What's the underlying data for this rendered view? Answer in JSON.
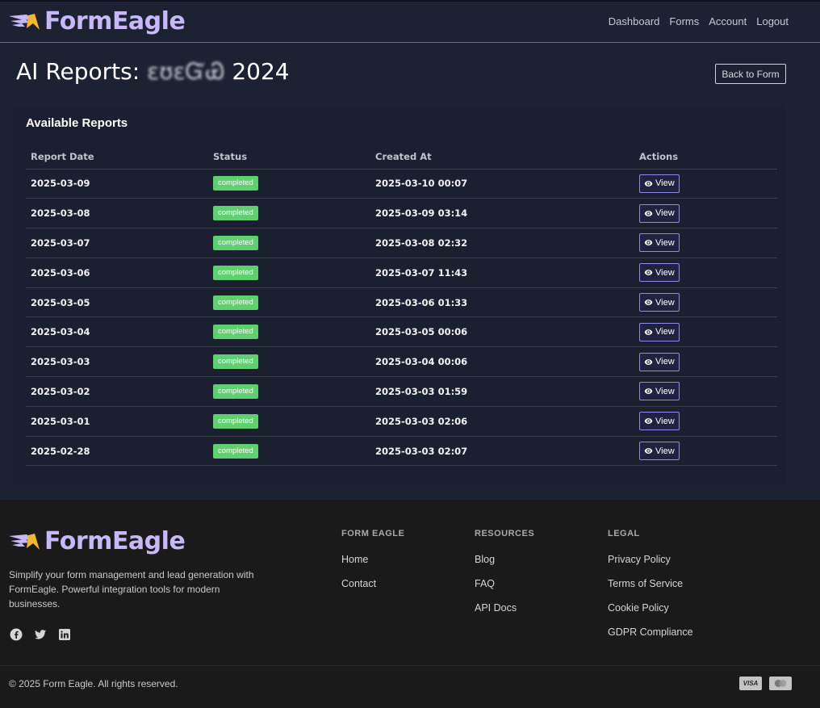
{
  "header": {
    "brand": "FormEagle",
    "nav": [
      "Dashboard",
      "Forms",
      "Account",
      "Logout"
    ]
  },
  "page": {
    "title_prefix": "AI Reports:",
    "title_redacted": "ɛʊɛ᠍ᏳᏯ",
    "title_suffix": "2024",
    "back_button": "Back to Form"
  },
  "reports": {
    "heading": "Available Reports",
    "columns": [
      "Report Date",
      "Status",
      "Created At",
      "Actions"
    ],
    "view_label": "View",
    "rows": [
      {
        "date": "2025-03-09",
        "status": "completed",
        "created": "2025-03-10 00:07"
      },
      {
        "date": "2025-03-08",
        "status": "completed",
        "created": "2025-03-09 03:14"
      },
      {
        "date": "2025-03-07",
        "status": "completed",
        "created": "2025-03-08 02:32"
      },
      {
        "date": "2025-03-06",
        "status": "completed",
        "created": "2025-03-07 11:43"
      },
      {
        "date": "2025-03-05",
        "status": "completed",
        "created": "2025-03-06 01:33"
      },
      {
        "date": "2025-03-04",
        "status": "completed",
        "created": "2025-03-05 00:06"
      },
      {
        "date": "2025-03-03",
        "status": "completed",
        "created": "2025-03-04 00:06"
      },
      {
        "date": "2025-03-02",
        "status": "completed",
        "created": "2025-03-03 01:59"
      },
      {
        "date": "2025-03-01",
        "status": "completed",
        "created": "2025-03-03 02:06"
      },
      {
        "date": "2025-02-28",
        "status": "completed",
        "created": "2025-03-03 02:07"
      }
    ]
  },
  "footer": {
    "brand": "FormEagle",
    "description": "Simplify your form management and lead generation with FormEagle. Powerful integration tools for modern businesses.",
    "social_icons": [
      "facebook-icon",
      "twitter-icon",
      "linkedin-icon"
    ],
    "columns": [
      {
        "heading": "FORM EAGLE",
        "links": [
          "Home",
          "Contact"
        ]
      },
      {
        "heading": "RESOURCES",
        "links": [
          "Blog",
          "FAQ",
          "API Docs"
        ]
      },
      {
        "heading": "LEGAL",
        "links": [
          "Privacy Policy",
          "Terms of Service",
          "Cookie Policy",
          "GDPR Compliance"
        ]
      }
    ],
    "copyright": "© 2025 Form Eagle. All rights reserved.",
    "payment_visa": "VISA",
    "payment_icons": [
      "visa-icon",
      "mastercard-icon"
    ]
  },
  "colors": {
    "background": "#1d2232",
    "brand_text": "#c7b8f7",
    "logo_accent": "#f2b632",
    "status_completed": "#5fd06f",
    "view_button_border": "#8f8ae8",
    "footer_bg": "#1a1a1a"
  }
}
